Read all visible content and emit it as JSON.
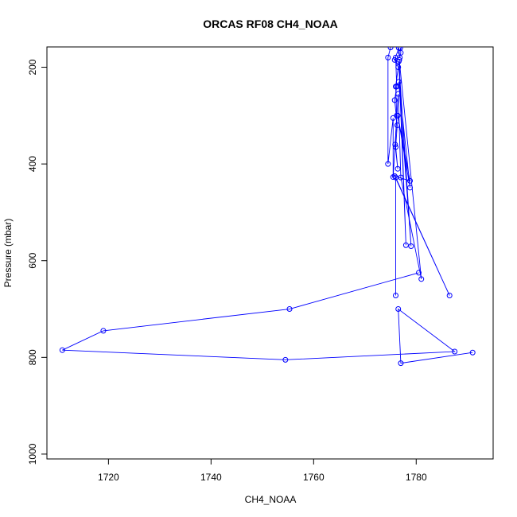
{
  "chart_data": {
    "type": "line",
    "title": "ORCAS RF08 CH4_NOAA",
    "xlabel": "CH4_NOAA",
    "ylabel": "Pressure (mbar)",
    "xlim": [
      1708,
      1795
    ],
    "ylim": [
      1010,
      158
    ],
    "y_inverted": true,
    "xticks": [
      1720,
      1740,
      1760,
      1780
    ],
    "yticks": [
      200,
      400,
      600,
      800,
      1000
    ],
    "grid": false,
    "legend": "none",
    "marker": "open-circle",
    "color": "#0000ff",
    "series": [
      {
        "points": [
          [
            1780.5,
            625
          ],
          [
            1755.3,
            700
          ],
          [
            1719.0,
            745
          ],
          [
            1711.0,
            785
          ],
          [
            1754.5,
            805
          ],
          [
            1787.5,
            788
          ],
          [
            1776.5,
            700
          ],
          [
            1777.0,
            812
          ],
          [
            1791.0,
            790
          ]
        ]
      },
      {
        "points": [
          [
            1776.0,
            672
          ],
          [
            1776.0,
            428
          ],
          [
            1786.5,
            672
          ],
          [
            1775.8,
            425
          ],
          [
            1778.8,
            435
          ],
          [
            1776.4,
            300
          ],
          [
            1778.8,
            449
          ],
          [
            1776.6,
            230
          ],
          [
            1779.0,
            570
          ],
          [
            1776.6,
            188
          ],
          [
            1778.0,
            568
          ],
          [
            1776.7,
            185
          ],
          [
            1781.0,
            638
          ],
          [
            1777.0,
            428
          ],
          [
            1776.5,
            255
          ],
          [
            1775.5,
            427
          ],
          [
            1775.5,
            305
          ],
          [
            1774.5,
            400
          ],
          [
            1774.5,
            180
          ],
          [
            1775.0,
            159
          ]
        ]
      },
      {
        "points": [
          [
            1776.0,
            180
          ],
          [
            1776.2,
            240
          ],
          [
            1775.8,
            268
          ],
          [
            1776.3,
            320
          ],
          [
            1776.0,
            365
          ],
          [
            1776.4,
            410
          ],
          [
            1775.9,
            360
          ],
          [
            1776.2,
            300
          ],
          [
            1776.0,
            240
          ],
          [
            1776.5,
            200
          ],
          [
            1775.8,
            185
          ],
          [
            1776.6,
            160
          ],
          [
            1776.8,
            180
          ],
          [
            1777.0,
            170
          ],
          [
            1776.9,
            160
          ]
        ]
      }
    ]
  }
}
